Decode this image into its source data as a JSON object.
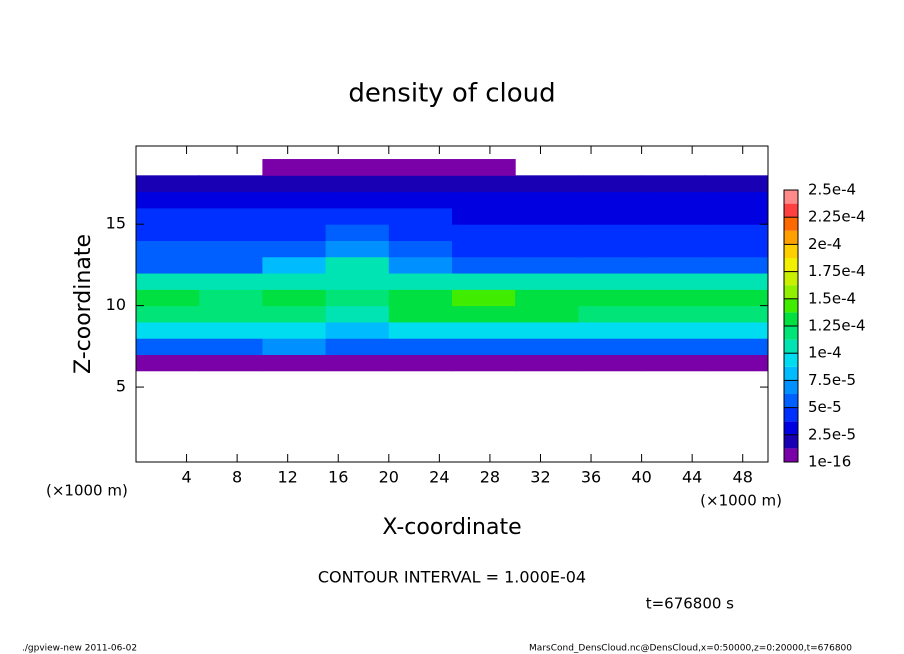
{
  "chart_data": {
    "type": "heatmap",
    "title": "density of cloud",
    "x_label": "X-coordinate",
    "y_label": "Z-coordinate",
    "x_unit_label": "(×1000 m)",
    "contour_note": "CONTOUR INTERVAL = 1.000E-04",
    "time_label": "t=676800 s",
    "footer_left": "./gpview-new  2011-06-02",
    "footer_right": "MarsCond_DensCloud.nc@DensCloud,x=0:50000,z=0:20000,t=676800",
    "xlim": [
      0,
      50
    ],
    "ylim": [
      0.4,
      19.8
    ],
    "xticks": [
      4,
      8,
      12,
      16,
      20,
      24,
      28,
      32,
      36,
      40,
      44,
      48
    ],
    "yticks": [
      5,
      10,
      15
    ],
    "x_edges": [
      0,
      5,
      10,
      15,
      20,
      25,
      30,
      35,
      40,
      45,
      50
    ],
    "z_edges": [
      6,
      7,
      8,
      9,
      10,
      11,
      12,
      13,
      14,
      15,
      16,
      17,
      18,
      19
    ],
    "values": [
      [
        5e-06,
        5e-06,
        5e-06,
        5e-06,
        5e-06,
        5e-06,
        5e-06,
        5e-06,
        5e-06,
        5e-06
      ],
      [
        6e-05,
        6e-05,
        6.5e-05,
        5.5e-05,
        6e-05,
        6e-05,
        6e-05,
        6e-05,
        6e-05,
        6e-05
      ],
      [
        9e-05,
        9e-05,
        9.5e-05,
        8.5e-05,
        9e-05,
        9.5e-05,
        9e-05,
        9e-05,
        9e-05,
        9e-05
      ],
      [
        0.000115,
        0.00012,
        0.00012,
        0.00011,
        0.000125,
        0.00013,
        0.000125,
        0.00012,
        0.00012,
        0.000115
      ],
      [
        0.000125,
        0.00012,
        0.000125,
        0.00012,
        0.000135,
        0.00014,
        0.000135,
        0.00013,
        0.00013,
        0.000125
      ],
      [
        0.0001,
        0.000105,
        0.00011,
        0.00011,
        0.000105,
        0.000105,
        0.0001,
        0.0001,
        0.0001,
        0.0001
      ],
      [
        6e-05,
        6e-05,
        8.5e-05,
        0.0001,
        6.5e-05,
        5.5e-05,
        5.5e-05,
        5.5e-05,
        5.5e-05,
        5.5e-05
      ],
      [
        5e-05,
        5e-05,
        6e-05,
        7e-05,
        5e-05,
        4.5e-05,
        4.5e-05,
        4.5e-05,
        4.5e-05,
        4.5e-05
      ],
      [
        4.5e-05,
        4.5e-05,
        4.5e-05,
        5e-05,
        4.5e-05,
        4e-05,
        4e-05,
        4e-05,
        4e-05,
        4e-05
      ],
      [
        4e-05,
        4e-05,
        4e-05,
        4e-05,
        4e-05,
        3.5e-05,
        3.5e-05,
        3.5e-05,
        3.5e-05,
        3.5e-05
      ],
      [
        3e-05,
        3e-05,
        3e-05,
        3e-05,
        3e-05,
        2.5e-05,
        3e-05,
        3e-05,
        3e-05,
        3e-05
      ],
      [
        2e-05,
        2e-05,
        2e-05,
        2e-05,
        2e-05,
        1.5e-05,
        2e-05,
        2e-05,
        2e-05,
        2e-05
      ],
      [
        0,
        0,
        5e-06,
        5e-06,
        5e-06,
        5e-06,
        0,
        0,
        0,
        0
      ]
    ],
    "colorbar": {
      "bounds": [
        1e-16,
        1.25e-05,
        2.5e-05,
        3.75e-05,
        5e-05,
        6.25e-05,
        7.5e-05,
        8.75e-05,
        0.0001,
        0.0001125,
        0.000125,
        0.0001375,
        0.00015,
        0.0001625,
        0.000175,
        0.0001875,
        0.0002,
        0.0002125,
        0.000225,
        0.0002375,
        0.00025
      ],
      "colors": [
        "#7a00a8",
        "#1a00b4",
        "#0000e0",
        "#0030ff",
        "#0060ff",
        "#0090ff",
        "#00bcff",
        "#00dcf0",
        "#00e4b4",
        "#00e478",
        "#00e040",
        "#40ec00",
        "#90f000",
        "#c8f000",
        "#f0f000",
        "#ffd000",
        "#ffa000",
        "#ff6a00",
        "#ff4040",
        "#ff8a8a"
      ],
      "ticks": [
        {
          "value": 1e-16,
          "label": "1e-16"
        },
        {
          "value": 2.5e-05,
          "label": "2.5e-5"
        },
        {
          "value": 5e-05,
          "label": "5e-5"
        },
        {
          "value": 7.5e-05,
          "label": "7.5e-5"
        },
        {
          "value": 0.0001,
          "label": "1e-4"
        },
        {
          "value": 0.000125,
          "label": "1.25e-4"
        },
        {
          "value": 0.00015,
          "label": "1.5e-4"
        },
        {
          "value": 0.000175,
          "label": "1.75e-4"
        },
        {
          "value": 0.0002,
          "label": "2e-4"
        },
        {
          "value": 0.000225,
          "label": "2.25e-4"
        },
        {
          "value": 0.00025,
          "label": "2.5e-4"
        }
      ]
    }
  }
}
